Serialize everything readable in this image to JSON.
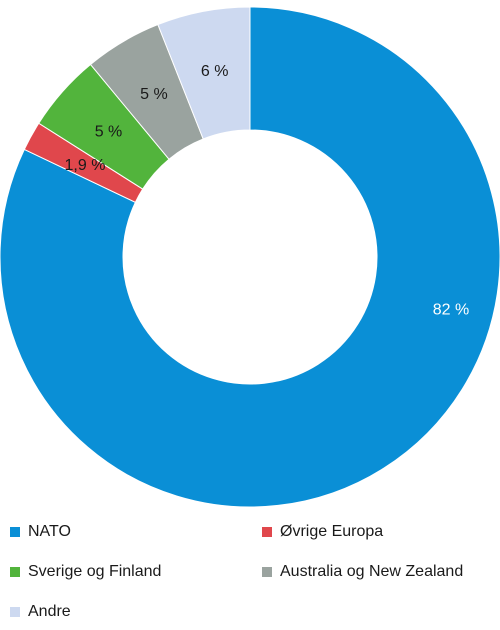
{
  "chart_data": {
    "type": "pie",
    "donut": true,
    "categories": [
      "NATO",
      "Øvrige Europa",
      "Sverige og Finland",
      "Australia og New Zealand",
      "Andre"
    ],
    "values": [
      82,
      1.9,
      5,
      5,
      6
    ],
    "labels": [
      "82 %",
      "1,9 %",
      "5 %",
      "5 %",
      "6 %"
    ],
    "colors": [
      "#0a8fd6",
      "#e0474c",
      "#52b43c",
      "#9aa39f",
      "#cdd9f0"
    ],
    "label_colors": [
      "#ffffff",
      "#1a1a1a",
      "#1a1a1a",
      "#1a1a1a",
      "#1a1a1a"
    ],
    "legend_position": "bottom"
  }
}
